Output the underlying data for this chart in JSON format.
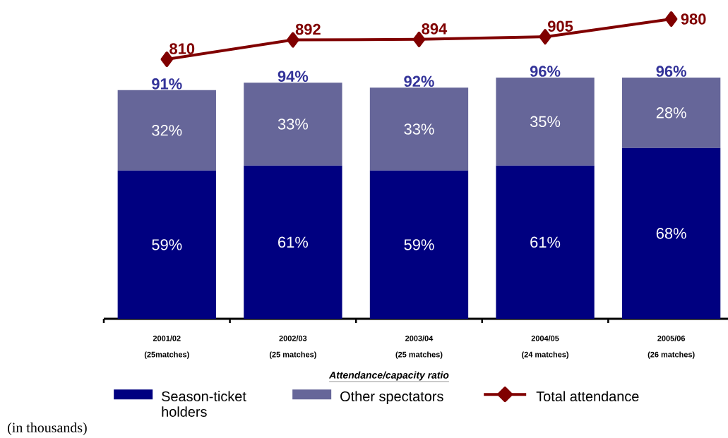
{
  "chart_data": [
    {
      "type": "line",
      "categories": [
        null,
        null,
        null,
        null,
        null
      ],
      "series": [
        {
          "name": "Total attendance",
          "marker": "diamond",
          "color": "#800000",
          "values": [
            810,
            892,
            894,
            905,
            980
          ],
          "value_labels": [
            "810",
            "892",
            "894",
            "905",
            "980"
          ]
        }
      ],
      "tick_labels": false,
      "grid": false,
      "legend": "bottom",
      "annotations": [
        "(in thousands)"
      ]
    },
    {
      "type": "bar",
      "stacked": true,
      "categories": [
        "2001/02\n(25matches)",
        "2002/03\n(25 matches)",
        "2003/04\n(25 matches)",
        "2004/05\n(24 matches)",
        "2005/06\n(26 matches)"
      ],
      "series": [
        {
          "name": "Season-ticket holders",
          "color": "#000080",
          "values": [
            59,
            61,
            59,
            61,
            68
          ],
          "value_labels": [
            "59%",
            "61%",
            "59%",
            "61%",
            "68%"
          ]
        },
        {
          "name": "Other spectators",
          "color": "#666699",
          "values": [
            32,
            33,
            33,
            35,
            28
          ],
          "value_labels": [
            "32%",
            "33%",
            "33%",
            "35%",
            "28%"
          ]
        }
      ],
      "totals": [
        "91%",
        "94%",
        "92%",
        "96%",
        "96%"
      ],
      "tick_labels": "x",
      "grid": false,
      "legend": "bottom",
      "annotations": [
        "Attendance/capacity ratio"
      ]
    }
  ]
}
